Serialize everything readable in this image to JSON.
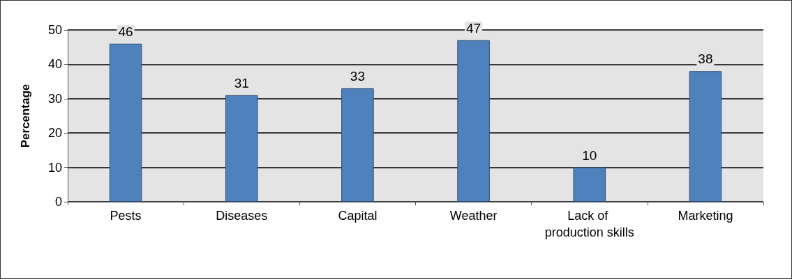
{
  "chart_data": {
    "type": "bar",
    "ylabel": "Percentage",
    "categories": [
      "Pests",
      "Diseases",
      "Capital",
      "Weather",
      "Lack of production skills",
      "Marketing"
    ],
    "values": [
      46,
      31,
      33,
      47,
      10,
      38
    ],
    "color": "#4f81bd",
    "ylim": [
      0,
      50
    ],
    "yticks": [
      0,
      10,
      20,
      30,
      40,
      50
    ],
    "grid": "y",
    "data_labels": true
  }
}
